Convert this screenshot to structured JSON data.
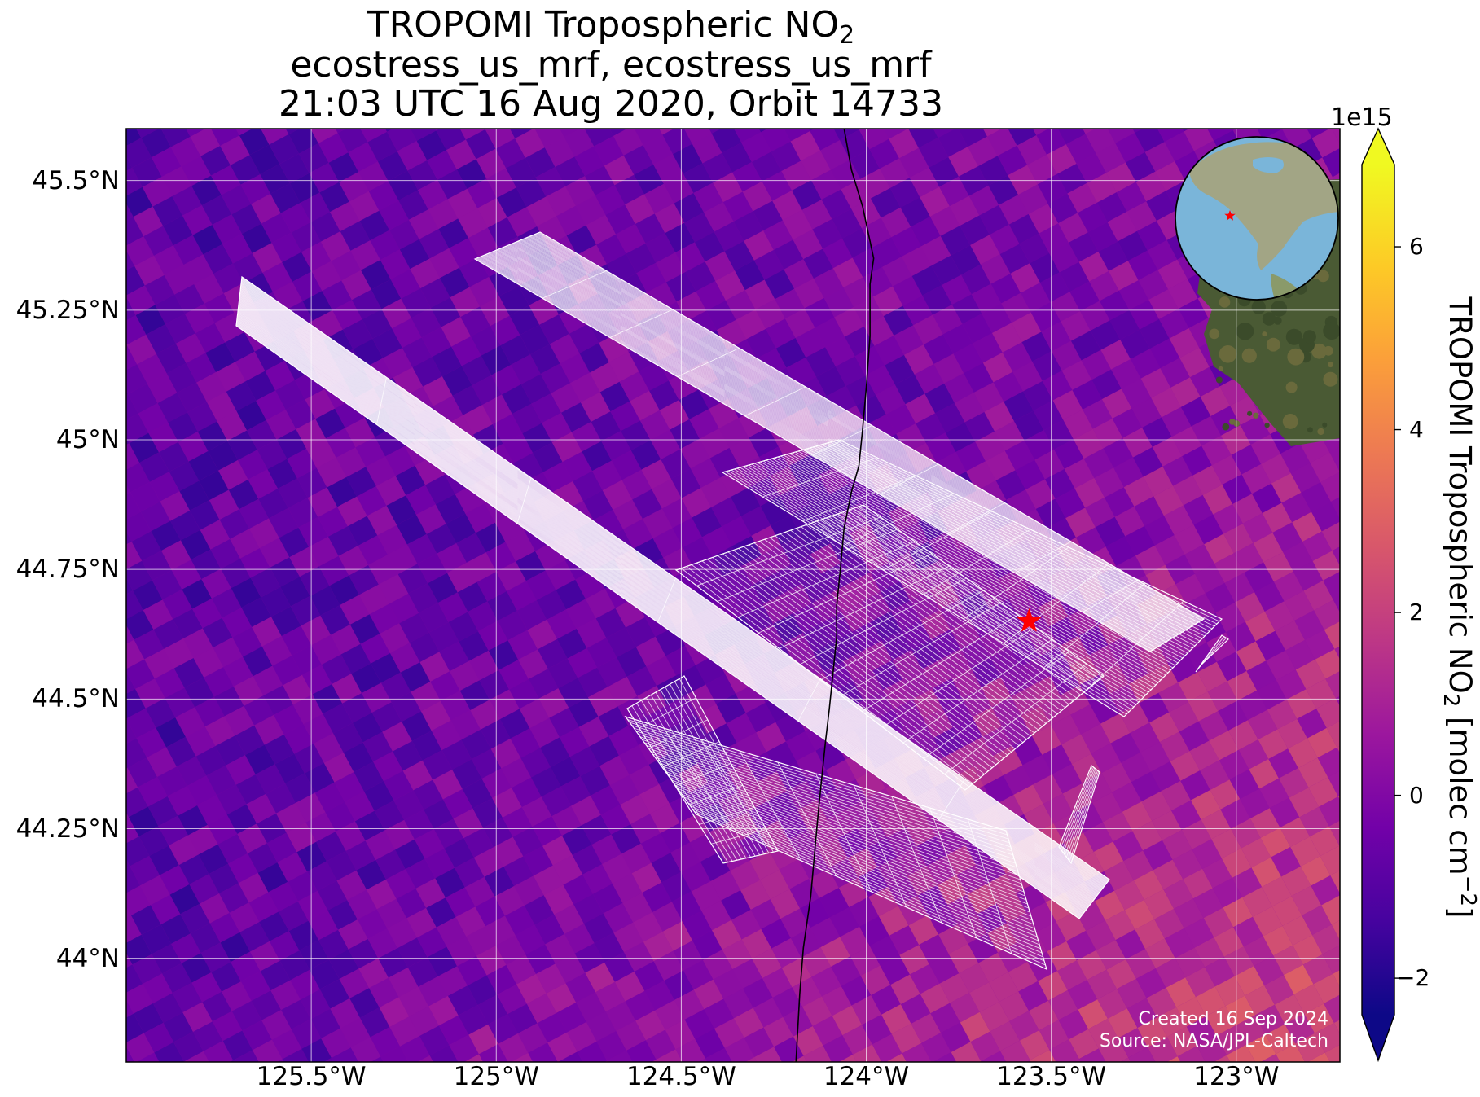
{
  "title": {
    "line1_prefix": "TROPOMI Tropospheric NO",
    "line1_sub": "2",
    "line2": "ecostress_us_mrf, ecostress_us_mrf",
    "line3": "21:03 UTC 16 Aug 2020, Orbit 14733"
  },
  "map": {
    "extent_lon": [
      -126.0,
      -122.72
    ],
    "extent_lat": [
      43.8,
      45.6
    ],
    "gridlines": true,
    "lat_ticks": [
      {
        "value": 45.5,
        "label": "45.5°N"
      },
      {
        "value": 45.25,
        "label": "45.25°N"
      },
      {
        "value": 45.0,
        "label": "45°N"
      },
      {
        "value": 44.75,
        "label": "44.75°N"
      },
      {
        "value": 44.5,
        "label": "44.5°N"
      },
      {
        "value": 44.25,
        "label": "44.25°N"
      },
      {
        "value": 44.0,
        "label": "44°N"
      }
    ],
    "lon_ticks": [
      {
        "value": -125.5,
        "label": "125.5°W"
      },
      {
        "value": -125.0,
        "label": "125°W"
      },
      {
        "value": -124.5,
        "label": "124.5°W"
      },
      {
        "value": -124.0,
        "label": "124°W"
      },
      {
        "value": -123.5,
        "label": "123.5°W"
      },
      {
        "value": -123.0,
        "label": "123°W"
      }
    ],
    "target_marker": {
      "lon": -123.56,
      "lat": 44.65,
      "color": "#ff0000",
      "symbol": "star"
    },
    "coastline": [
      [
        -124.06,
        45.6
      ],
      [
        -124.04,
        45.52
      ],
      [
        -124.01,
        45.45
      ],
      [
        -123.98,
        45.35
      ],
      [
        -123.99,
        45.3
      ],
      [
        -123.99,
        45.2
      ],
      [
        -124.0,
        45.1
      ],
      [
        -124.01,
        45.02
      ],
      [
        -124.02,
        44.95
      ],
      [
        -124.04,
        44.9
      ],
      [
        -124.06,
        44.83
      ],
      [
        -124.07,
        44.75
      ],
      [
        -124.08,
        44.68
      ],
      [
        -124.08,
        44.62
      ],
      [
        -124.09,
        44.55
      ],
      [
        -124.1,
        44.48
      ],
      [
        -124.11,
        44.42
      ],
      [
        -124.12,
        44.35
      ],
      [
        -124.13,
        44.28
      ],
      [
        -124.14,
        44.2
      ],
      [
        -124.15,
        44.12
      ],
      [
        -124.17,
        44.02
      ],
      [
        -124.18,
        43.93
      ],
      [
        -124.19,
        43.8
      ]
    ]
  },
  "colorbar": {
    "colormap": "plasma",
    "colors": [
      "#0d0887",
      "#46039f",
      "#7201a8",
      "#9c179e",
      "#bd3786",
      "#d8576b",
      "#ed7953",
      "#fb9f3a",
      "#fdca26",
      "#f0f921"
    ],
    "vmin": -2.4,
    "vmax": 6.9,
    "extend": "both",
    "ticks": [
      {
        "value": 6,
        "label": "6"
      },
      {
        "value": 4,
        "label": "4"
      },
      {
        "value": 2,
        "label": "2"
      },
      {
        "value": 0,
        "label": "0"
      },
      {
        "value": -2,
        "label": "−2"
      }
    ],
    "exponent_label": "1e15",
    "label_prefix": "TROPOMI Tropospheric NO",
    "label_sub": "2",
    "label_middle": " [molec cm",
    "label_sup": "−2",
    "label_suffix": "]"
  },
  "inset_globe": {
    "marker_color": "#ff0000"
  },
  "credits": {
    "created": "Created 16 Sep 2024",
    "source": "Source: NASA/JPL-Caltech"
  }
}
